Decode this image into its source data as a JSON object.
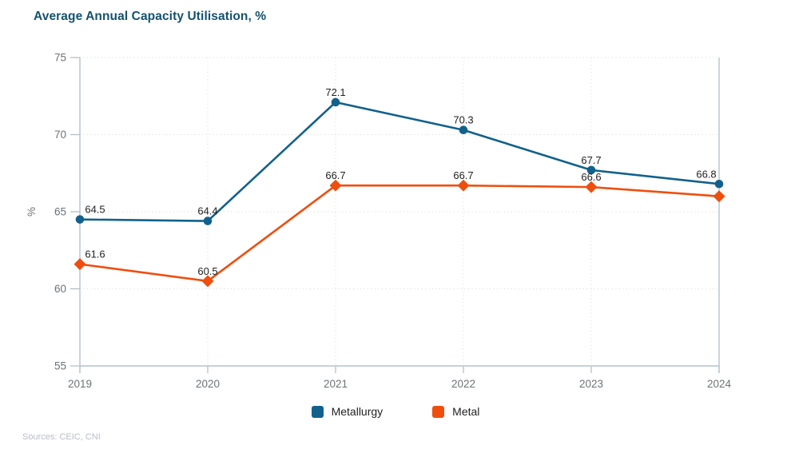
{
  "header": {
    "title": "Average Annual Capacity Utilisation, %"
  },
  "footer": {
    "sources": "Sources: CEIC, CNI"
  },
  "legend": {
    "items": [
      {
        "label": "Metallurgy",
        "color": "#12618c"
      },
      {
        "label": "Metal",
        "color": "#ef4e0e"
      }
    ]
  },
  "colors": {
    "title": "#14516f",
    "metallurgy_line": "#12618c",
    "metal_line": "#ef4e0e",
    "axis": "#b3c2cd",
    "gridline": "#d8d8d8",
    "tick_label": "#6d7278",
    "data_label": "#222222",
    "sources_text": "#b8bcc6"
  },
  "chart_data": {
    "type": "line",
    "title": "Average Annual Capacity Utilisation, %",
    "categories": [
      "2019",
      "2020",
      "2021",
      "2022",
      "2023",
      "2024"
    ],
    "series": [
      {
        "name": "Metallurgy",
        "color": "#12618c",
        "marker": "circle",
        "values": [
          64.5,
          64.4,
          72.1,
          70.3,
          67.7,
          66.8
        ],
        "labels": [
          "64.5",
          "64.4",
          "72.1",
          "70.3",
          "67.7",
          "66.8"
        ]
      },
      {
        "name": "Metal",
        "color": "#ef4e0e",
        "marker": "diamond",
        "values": [
          61.6,
          60.5,
          66.7,
          66.7,
          66.6,
          66.0
        ],
        "labels": [
          "61.6",
          "60.5",
          "66.7",
          "66.7",
          "66.6",
          null
        ]
      }
    ],
    "xlabel": "",
    "ylabel": "%",
    "ylim": [
      55,
      75
    ],
    "yticks": [
      55,
      60,
      65,
      70,
      75
    ],
    "grid": true,
    "grid_style": "dotted",
    "legend_position": "bottom"
  }
}
